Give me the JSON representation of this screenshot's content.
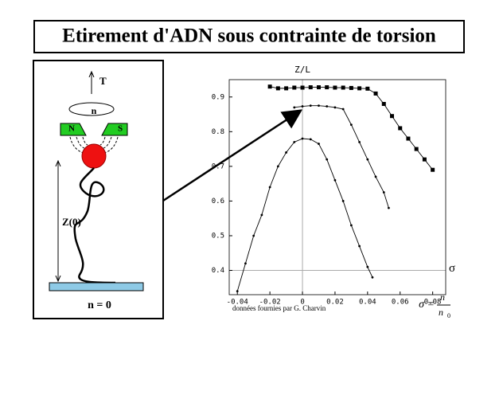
{
  "title": "Etirement d'ADN sous contrainte de torsion",
  "diagram": {
    "force_label": "T",
    "rotation_label": "n",
    "magnet_north": "N",
    "magnet_south": "S",
    "extension_label": "Z(0)",
    "turns_label": "n = 0"
  },
  "chart_data": {
    "type": "line",
    "ylabel": "Z/L",
    "xlabel": "σ",
    "note": "données fournies par G. Charvin",
    "formula": {
      "lhs": "σ =",
      "numerator": "n",
      "denominator": "n",
      "subscript": "0"
    },
    "xlim": [
      -0.045,
      0.088
    ],
    "ylim": [
      0.33,
      0.95
    ],
    "xticks": [
      -0.04,
      -0.02,
      0,
      0.02,
      0.04,
      0.06,
      0.08
    ],
    "yticks": [
      0.4,
      0.5,
      0.6,
      0.7,
      0.8,
      0.9
    ],
    "series": [
      {
        "color": "#000000",
        "marker": "square",
        "x": [
          -0.02,
          -0.015,
          -0.01,
          -0.005,
          0,
          0.005,
          0.01,
          0.015,
          0.02,
          0.025,
          0.03,
          0.035,
          0.04,
          0.045,
          0.05,
          0.055,
          0.06,
          0.065,
          0.07,
          0.075,
          0.08
        ],
        "values": [
          0.93,
          0.925,
          0.925,
          0.927,
          0.927,
          0.928,
          0.928,
          0.928,
          0.927,
          0.927,
          0.926,
          0.925,
          0.924,
          0.91,
          0.88,
          0.845,
          0.81,
          0.78,
          0.75,
          0.72,
          0.69
        ]
      },
      {
        "color": "#000000",
        "marker": "dot",
        "x": [
          -0.005,
          0,
          0.005,
          0.01,
          0.015,
          0.02,
          0.025,
          0.03,
          0.035,
          0.04,
          0.045,
          0.05,
          0.053
        ],
        "values": [
          0.87,
          0.873,
          0.875,
          0.875,
          0.873,
          0.87,
          0.865,
          0.82,
          0.77,
          0.72,
          0.67,
          0.625,
          0.58
        ]
      },
      {
        "color": "#000000",
        "marker": "dot",
        "x": [
          -0.04,
          -0.035,
          -0.03,
          -0.025,
          -0.02,
          -0.015,
          -0.01,
          -0.005,
          0,
          0.005,
          0.01,
          0.015,
          0.02,
          0.025,
          0.03,
          0.035,
          0.04,
          0.043
        ],
        "values": [
          0.34,
          0.42,
          0.5,
          0.56,
          0.64,
          0.7,
          0.74,
          0.77,
          0.78,
          0.778,
          0.765,
          0.72,
          0.66,
          0.6,
          0.53,
          0.47,
          0.41,
          0.38
        ]
      }
    ]
  }
}
